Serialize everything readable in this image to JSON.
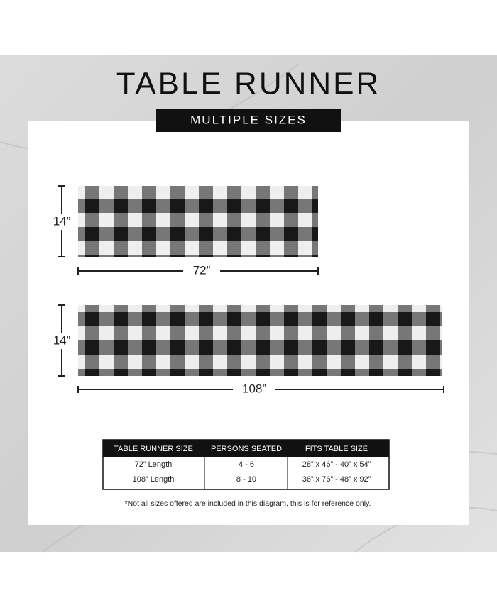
{
  "header": {
    "title": "TABLE RUNNER",
    "subtitle": "MULTIPLE SIZES"
  },
  "diagram": {
    "runners": [
      {
        "width_label": "14”",
        "length_label": "72”"
      },
      {
        "width_label": "14”",
        "length_label": "108”"
      }
    ]
  },
  "table": {
    "headers": [
      "TABLE RUNNER SIZE",
      "PERSONS SEATED",
      "FITS TABLE SIZE"
    ],
    "rows": [
      [
        "72” Length",
        "4 - 6",
        "28” x 46” - 40” x 54”"
      ],
      [
        "108” Length",
        "8 - 10",
        "36” x 76” - 48” x 92”"
      ]
    ]
  },
  "footnote": "*Not all sizes offered are included in this diagram, this is for reference only."
}
